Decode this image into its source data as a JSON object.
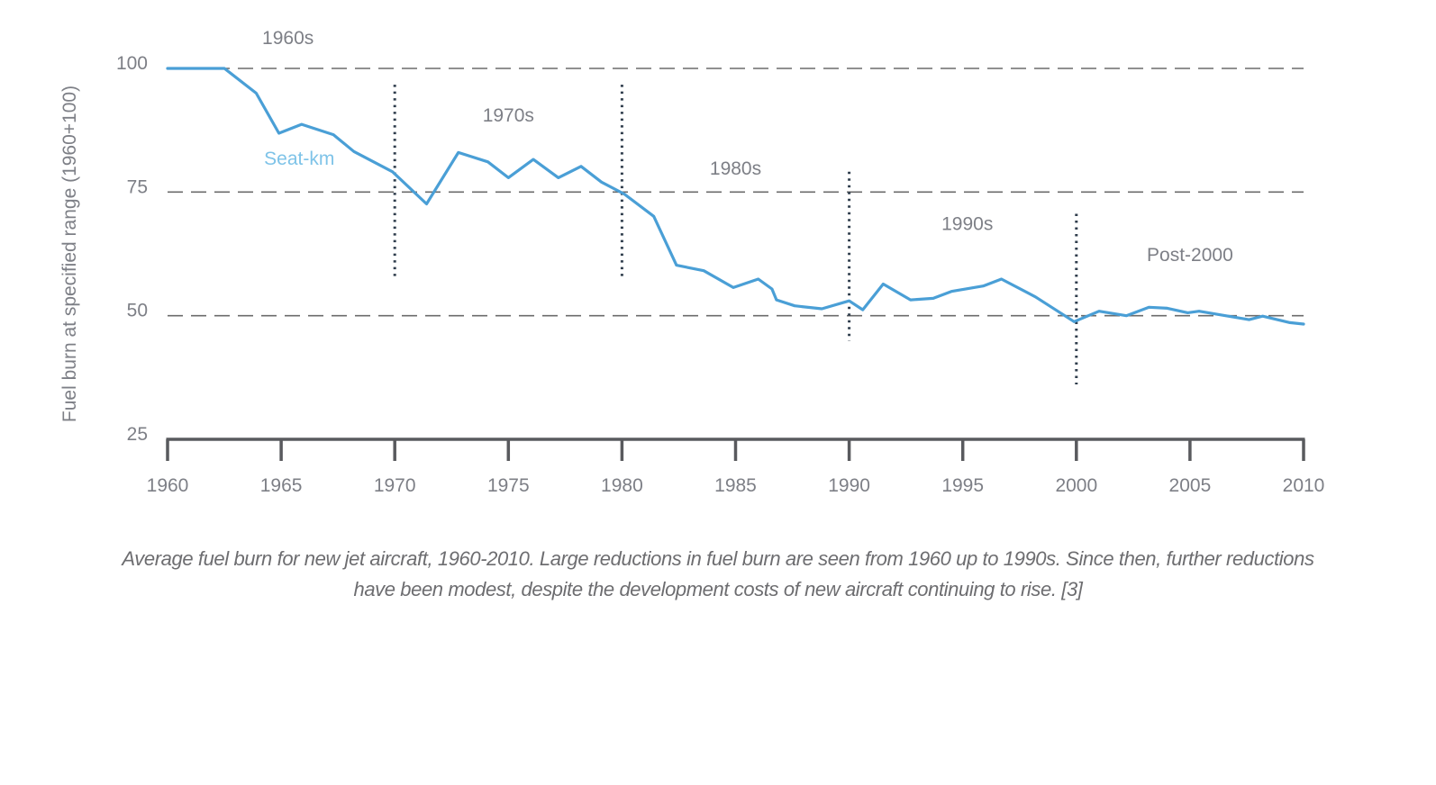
{
  "chart_data": {
    "type": "line",
    "title": "",
    "xlabel": "",
    "ylabel": "Fuel burn at specified range (1960+100)",
    "xlim": [
      1960,
      2010
    ],
    "ylim": [
      25,
      100
    ],
    "x_ticks": [
      1960,
      1965,
      1970,
      1975,
      1980,
      1985,
      1990,
      1995,
      2000,
      2005,
      2010
    ],
    "x_tick_labels": [
      "1960",
      "1965",
      "1970",
      "1975",
      "1980",
      "1985",
      "1990",
      "1995",
      "2000",
      "2005",
      "2010"
    ],
    "y_ticks": [
      100,
      75,
      50,
      25
    ],
    "y_tick_labels": [
      "100",
      "75",
      "50",
      "25"
    ],
    "grid": {
      "horizontal_dashed_at": [
        100,
        75,
        50
      ]
    },
    "series": [
      {
        "name": "Seat-km",
        "color": "#4a9fd6",
        "label_color": "#7ec3e8",
        "label_anchor": {
          "x": 1965.8,
          "y": 80.5
        },
        "points": [
          [
            1960.0,
            100.0
          ],
          [
            1962.5,
            100.0
          ],
          [
            1963.9,
            95.0
          ],
          [
            1964.9,
            86.9
          ],
          [
            1965.9,
            88.7
          ],
          [
            1967.3,
            86.6
          ],
          [
            1968.2,
            83.2
          ],
          [
            1969.9,
            79.1
          ],
          [
            1971.4,
            72.6
          ],
          [
            1972.8,
            83.0
          ],
          [
            1974.1,
            81.1
          ],
          [
            1975.0,
            77.9
          ],
          [
            1976.1,
            81.6
          ],
          [
            1977.2,
            77.9
          ],
          [
            1978.2,
            80.2
          ],
          [
            1979.1,
            77.0
          ],
          [
            1980.1,
            74.6
          ],
          [
            1981.4,
            70.1
          ],
          [
            1982.4,
            60.2
          ],
          [
            1983.6,
            59.1
          ],
          [
            1984.9,
            55.7
          ],
          [
            1986.0,
            57.4
          ],
          [
            1986.6,
            55.4
          ],
          [
            1986.8,
            53.2
          ],
          [
            1987.6,
            52.0
          ],
          [
            1988.8,
            51.4
          ],
          [
            1990.0,
            53.0
          ],
          [
            1990.6,
            51.2
          ],
          [
            1991.5,
            56.4
          ],
          [
            1992.7,
            53.2
          ],
          [
            1993.7,
            53.5
          ],
          [
            1994.5,
            54.9
          ],
          [
            1995.9,
            56.0
          ],
          [
            1996.7,
            57.4
          ],
          [
            1998.2,
            53.8
          ],
          [
            1999.9,
            48.8
          ],
          [
            2001.0,
            50.9
          ],
          [
            2002.2,
            50.0
          ],
          [
            2003.2,
            51.7
          ],
          [
            2004.0,
            51.5
          ],
          [
            2004.9,
            50.6
          ],
          [
            2005.4,
            50.9
          ],
          [
            2006.3,
            50.2
          ],
          [
            2007.6,
            49.2
          ],
          [
            2008.2,
            49.9
          ],
          [
            2009.4,
            48.6
          ],
          [
            2010.0,
            48.3
          ]
        ]
      }
    ],
    "decade_dividers": [
      {
        "x": 1970,
        "from": 57.9,
        "to": 96.7
      },
      {
        "x": 1980,
        "from": 57.9,
        "to": 96.7
      },
      {
        "x": 1990,
        "from": 44.9,
        "to": 79.1
      },
      {
        "x": 2000,
        "from": 36.1,
        "to": 70.6
      }
    ],
    "annotations": [
      {
        "text": "1960s",
        "x": 1965.3,
        "y": 104.9
      },
      {
        "text": "1970s",
        "x": 1975.0,
        "y": 89.3
      },
      {
        "text": "1980s",
        "x": 1985.0,
        "y": 78.5
      },
      {
        "text": "1990s",
        "x": 1995.2,
        "y": 67.3
      },
      {
        "text": "Post-2000",
        "x": 2005.0,
        "y": 61.0
      }
    ],
    "colors": {
      "labels": "#7d7f86",
      "axis": "#595a5e",
      "grid": "#6b6b6b",
      "divider": "#2f3d4c"
    }
  },
  "caption": {
    "line1": "Average fuel burn for new jet aircraft, 1960-2010. Large reductions in fuel burn are seen from 1960 up to 1990s. Since then, further reductions",
    "line2": "have been modest, despite the development costs of new aircraft continuing to rise. [3]"
  }
}
